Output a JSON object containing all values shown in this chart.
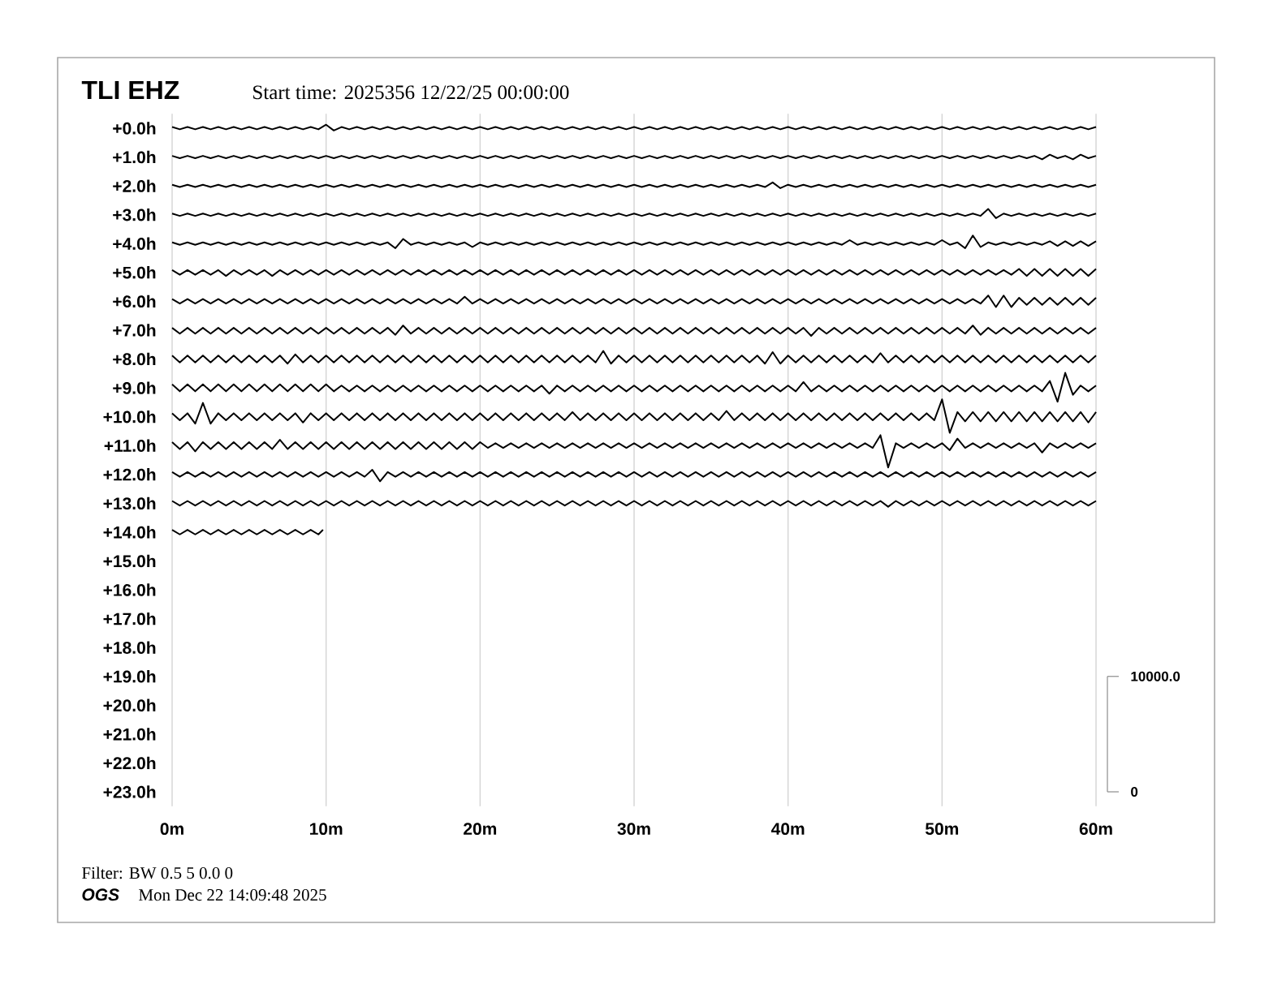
{
  "chart_data": {
    "type": "line",
    "title": "TLI EHZ",
    "subtitle": "Start time: 2025356 12/22/25 00:00:00",
    "annotations": [
      "Filter: BW 0.5 5 0.0 0",
      "OGS",
      "Mon Dec 22 14:09:48 2025"
    ],
    "xlim": [
      0,
      60
    ],
    "xticks": [
      {
        "value": 0,
        "label": "0m"
      },
      {
        "value": 10,
        "label": "10m"
      },
      {
        "value": 20,
        "label": "20m"
      },
      {
        "value": 30,
        "label": "30m"
      },
      {
        "value": 40,
        "label": "40m"
      },
      {
        "value": 50,
        "label": "50m"
      },
      {
        "value": 60,
        "label": "60m"
      }
    ],
    "ylim": [
      23.5,
      -0.5
    ],
    "yticks": [
      {
        "value": 0,
        "label": "+0.0h"
      },
      {
        "value": 1,
        "label": "+1.0h"
      },
      {
        "value": 2,
        "label": "+2.0h"
      },
      {
        "value": 3,
        "label": "+3.0h"
      },
      {
        "value": 4,
        "label": "+4.0h"
      },
      {
        "value": 5,
        "label": "+5.0h"
      },
      {
        "value": 6,
        "label": "+6.0h"
      },
      {
        "value": 7,
        "label": "+7.0h"
      },
      {
        "value": 8,
        "label": "+8.0h"
      },
      {
        "value": 9,
        "label": "+9.0h"
      },
      {
        "value": 10,
        "label": "+10.0h"
      },
      {
        "value": 11,
        "label": "+11.0h"
      },
      {
        "value": 12,
        "label": "+12.0h"
      },
      {
        "value": 13,
        "label": "+13.0h"
      },
      {
        "value": 14,
        "label": "+14.0h"
      },
      {
        "value": 15,
        "label": "+15.0h"
      },
      {
        "value": 16,
        "label": "+16.0h"
      },
      {
        "value": 17,
        "label": "+17.0h"
      },
      {
        "value": 18,
        "label": "+18.0h"
      },
      {
        "value": 19,
        "label": "+19.0h"
      },
      {
        "value": 20,
        "label": "+20.0h"
      },
      {
        "value": 21,
        "label": "+21.0h"
      },
      {
        "value": 22,
        "label": "+22.0h"
      },
      {
        "value": 23,
        "label": "+23.0h"
      }
    ],
    "y2lim": [
      -1250,
      58750
    ],
    "y2ticks": [
      0,
      {
        "value": 10000,
        "label": "10000.0"
      }
    ],
    "grid": "x",
    "marker": "none",
    "line_style": "solid",
    "x": [
      0,
      0.5,
      1,
      1.5,
      2,
      2.5,
      3,
      3.5,
      4,
      4.5,
      5,
      5.5,
      6,
      6.5,
      7,
      7.5,
      8,
      8.5,
      9,
      9.5,
      10,
      10.5,
      11,
      11.5,
      12,
      12.5,
      13,
      13.5,
      14,
      14.5,
      15,
      15.5,
      16,
      16.5,
      17,
      17.5,
      18,
      18.5,
      19,
      19.5,
      20,
      20.5,
      21,
      21.5,
      22,
      22.5,
      23,
      23.5,
      24,
      24.5,
      25,
      25.5,
      26,
      26.5,
      27,
      27.5,
      28,
      28.5,
      29,
      29.5,
      30,
      30.5,
      31,
      31.5,
      32,
      32.5,
      33,
      33.5,
      34,
      34.5,
      35,
      35.5,
      36,
      36.5,
      37,
      37.5,
      38,
      38.5,
      39,
      39.5,
      40,
      40.5,
      41,
      41.5,
      42,
      42.5,
      43,
      43.5,
      44,
      44.5,
      45,
      45.5,
      46,
      46.5,
      47,
      47.5,
      48,
      48.5,
      49,
      49.5,
      50,
      50.5,
      51,
      51.5,
      52,
      52.5,
      53,
      53.5,
      54,
      54.5,
      55,
      55.5,
      56,
      56.5,
      57,
      57.5,
      58,
      58.5,
      59,
      59.5,
      60
    ],
    "series": [
      {
        "axis": "y2",
        "color": "#000000",
        "values": [
          57600,
          57400,
          57600,
          57400,
          57600,
          57400,
          57600,
          57400,
          57600,
          57400,
          57600,
          57400,
          57600,
          57400,
          57600,
          57400,
          57600,
          57400,
          57600,
          57400,
          57800,
          57300,
          57600,
          57400,
          57600,
          57400,
          57600,
          57400,
          57600,
          57400,
          57600,
          57400,
          57600,
          57400,
          57600,
          57400,
          57600,
          57400,
          57600,
          57400,
          57600,
          57400,
          57600,
          57400,
          57600,
          57400,
          57600,
          57400,
          57600,
          57400,
          57600,
          57400,
          57600,
          57400,
          57600,
          57400,
          57600,
          57400,
          57600,
          57400,
          57600,
          57400,
          57600,
          57400,
          57600,
          57400,
          57600,
          57400,
          57600,
          57400,
          57600,
          57400,
          57600,
          57400,
          57600,
          57400,
          57600,
          57400,
          57600,
          57400,
          57600,
          57400,
          57600,
          57400,
          57600,
          57400,
          57600,
          57400,
          57600,
          57400,
          57600,
          57400,
          57600,
          57400,
          57600,
          57400,
          57600,
          57400,
          57600,
          57400,
          57600,
          57400,
          57600,
          57400,
          57600,
          57400,
          57600,
          57400,
          57600,
          57400,
          57600,
          57400,
          57600,
          57400,
          57600,
          57400,
          57600,
          57400,
          57600,
          57400,
          57600
        ]
      },
      {
        "axis": "y2",
        "color": "#000000",
        "values": [
          55100,
          54900,
          55100,
          54900,
          55100,
          54900,
          55100,
          54900,
          55100,
          54900,
          55100,
          54900,
          55100,
          54900,
          55100,
          54900,
          55100,
          54900,
          55100,
          54900,
          55100,
          54900,
          55100,
          54900,
          55100,
          54900,
          55100,
          54900,
          55100,
          54900,
          55100,
          54900,
          55100,
          54900,
          55100,
          54900,
          55100,
          54900,
          55100,
          54900,
          55100,
          54900,
          55100,
          54900,
          55100,
          54900,
          55100,
          54900,
          55100,
          54900,
          55100,
          54900,
          55100,
          54900,
          55100,
          54900,
          55100,
          54900,
          55100,
          54900,
          55100,
          54900,
          55100,
          54900,
          55100,
          54900,
          55100,
          54900,
          55100,
          54900,
          55100,
          54900,
          55100,
          54900,
          55100,
          54900,
          55100,
          54900,
          55100,
          54900,
          55100,
          54900,
          55100,
          54900,
          55100,
          54900,
          55100,
          54900,
          55100,
          54900,
          55100,
          54900,
          55100,
          54900,
          55100,
          54900,
          55100,
          54900,
          55100,
          54900,
          55100,
          54900,
          55100,
          54900,
          55100,
          54900,
          55100,
          54900,
          55100,
          54900,
          55100,
          54900,
          55100,
          54800,
          55200,
          54900,
          55100,
          54800,
          55200,
          54900,
          55100
        ]
      },
      {
        "axis": "y2",
        "color": "#000000",
        "values": [
          52600,
          52400,
          52600,
          52400,
          52600,
          52400,
          52600,
          52400,
          52600,
          52400,
          52600,
          52400,
          52600,
          52400,
          52600,
          52400,
          52600,
          52400,
          52600,
          52400,
          52600,
          52400,
          52600,
          52400,
          52600,
          52400,
          52600,
          52400,
          52600,
          52400,
          52600,
          52400,
          52600,
          52400,
          52600,
          52400,
          52600,
          52400,
          52600,
          52400,
          52600,
          52400,
          52600,
          52400,
          52600,
          52400,
          52600,
          52400,
          52600,
          52400,
          52600,
          52400,
          52600,
          52400,
          52600,
          52400,
          52600,
          52400,
          52600,
          52400,
          52600,
          52400,
          52600,
          52400,
          52600,
          52400,
          52600,
          52400,
          52600,
          52400,
          52600,
          52400,
          52600,
          52400,
          52600,
          52400,
          52600,
          52400,
          52800,
          52300,
          52600,
          52400,
          52600,
          52400,
          52600,
          52400,
          52600,
          52400,
          52600,
          52400,
          52600,
          52400,
          52600,
          52400,
          52600,
          52400,
          52600,
          52400,
          52600,
          52400,
          52600,
          52400,
          52600,
          52400,
          52600,
          52400,
          52600,
          52400,
          52600,
          52400,
          52600,
          52400,
          52600,
          52400,
          52600,
          52400,
          52600,
          52400,
          52600,
          52400,
          52600
        ]
      },
      {
        "axis": "y2",
        "color": "#000000",
        "values": [
          50100,
          49900,
          50100,
          49900,
          50100,
          49900,
          50100,
          49900,
          50100,
          49900,
          50100,
          49900,
          50100,
          49900,
          50100,
          49900,
          50100,
          49900,
          50100,
          49900,
          50100,
          49900,
          50100,
          49900,
          50100,
          49900,
          50100,
          49900,
          50100,
          49900,
          50100,
          49900,
          50100,
          49900,
          50100,
          49900,
          50100,
          49900,
          50100,
          49900,
          50100,
          49900,
          50100,
          49900,
          50100,
          49900,
          50100,
          49900,
          50100,
          49900,
          50100,
          49900,
          50100,
          49900,
          50100,
          49900,
          50100,
          49900,
          50100,
          49900,
          50100,
          49900,
          50100,
          49900,
          50100,
          49900,
          50100,
          49900,
          50100,
          49900,
          50100,
          49900,
          50100,
          49900,
          50100,
          49900,
          50100,
          49900,
          50100,
          49900,
          50100,
          49900,
          50100,
          49900,
          50100,
          49900,
          50100,
          49900,
          50100,
          49900,
          50100,
          49900,
          50100,
          49900,
          50100,
          49900,
          50100,
          49900,
          50100,
          49900,
          50100,
          49900,
          50100,
          49900,
          50100,
          49900,
          50500,
          49700,
          50100,
          49900,
          50100,
          49900,
          50100,
          49900,
          50100,
          49900,
          50100,
          49900,
          50100,
          49900,
          50100
        ]
      },
      {
        "axis": "y2",
        "color": "#000000",
        "values": [
          47600,
          47400,
          47600,
          47400,
          47600,
          47400,
          47600,
          47400,
          47600,
          47400,
          47600,
          47400,
          47600,
          47400,
          47600,
          47400,
          47600,
          47400,
          47600,
          47400,
          47600,
          47400,
          47600,
          47400,
          47600,
          47400,
          47600,
          47400,
          47600,
          47100,
          47900,
          47400,
          47600,
          47400,
          47600,
          47400,
          47600,
          47400,
          47600,
          47200,
          47600,
          47400,
          47600,
          47400,
          47600,
          47400,
          47600,
          47400,
          47600,
          47400,
          47600,
          47400,
          47600,
          47400,
          47600,
          47400,
          47600,
          47400,
          47600,
          47400,
          47600,
          47400,
          47600,
          47400,
          47600,
          47400,
          47600,
          47400,
          47600,
          47400,
          47600,
          47400,
          47600,
          47400,
          47600,
          47400,
          47600,
          47400,
          47600,
          47400,
          47600,
          47400,
          47600,
          47400,
          47600,
          47400,
          47600,
          47400,
          47800,
          47400,
          47600,
          47400,
          47600,
          47400,
          47600,
          47400,
          47600,
          47400,
          47600,
          47400,
          47800,
          47400,
          47600,
          47100,
          48200,
          47200,
          47600,
          47400,
          47600,
          47400,
          47600,
          47400,
          47600,
          47400,
          47700,
          47300,
          47700,
          47300,
          47700,
          47300,
          47700
        ]
      },
      {
        "axis": "y2",
        "color": "#000000",
        "values": [
          45200,
          44800,
          45200,
          44800,
          45200,
          44800,
          45200,
          44700,
          45200,
          44800,
          45200,
          44800,
          45200,
          44700,
          45200,
          44800,
          45200,
          44800,
          45200,
          44800,
          45200,
          44800,
          45200,
          44800,
          45200,
          44800,
          45200,
          44800,
          45200,
          44800,
          45200,
          44800,
          45200,
          44800,
          45200,
          44800,
          45200,
          44800,
          45200,
          44800,
          45200,
          44800,
          45200,
          44800,
          45200,
          44800,
          45200,
          44800,
          45200,
          44800,
          45200,
          44800,
          45200,
          44800,
          45200,
          44800,
          45200,
          44800,
          45200,
          44800,
          45200,
          44800,
          45200,
          44800,
          45200,
          44800,
          45200,
          44800,
          45200,
          44800,
          45200,
          44800,
          45200,
          44800,
          45200,
          44800,
          45200,
          44800,
          45200,
          44800,
          45200,
          44800,
          45200,
          44800,
          45200,
          44800,
          45200,
          44800,
          45200,
          44800,
          45200,
          44800,
          45200,
          44800,
          45200,
          44800,
          45200,
          44800,
          45200,
          44800,
          45200,
          44800,
          45200,
          44800,
          45200,
          44800,
          45200,
          44800,
          45200,
          44800,
          45300,
          44700,
          45300,
          44700,
          45300,
          44700,
          45300,
          44700,
          45300,
          44700,
          45300
        ]
      },
      {
        "axis": "y2",
        "color": "#000000",
        "values": [
          42700,
          42300,
          42700,
          42300,
          42700,
          42300,
          42700,
          42300,
          42700,
          42300,
          42700,
          42300,
          42700,
          42300,
          42700,
          42300,
          42700,
          42300,
          42700,
          42300,
          42700,
          42300,
          42700,
          42300,
          42700,
          42300,
          42700,
          42300,
          42700,
          42300,
          42700,
          42300,
          42700,
          42300,
          42700,
          42300,
          42700,
          42300,
          42900,
          42300,
          42700,
          42300,
          42700,
          42300,
          42700,
          42300,
          42700,
          42300,
          42700,
          42300,
          42700,
          42300,
          42700,
          42300,
          42700,
          42300,
          42700,
          42300,
          42700,
          42300,
          42700,
          42300,
          42700,
          42300,
          42700,
          42300,
          42700,
          42300,
          42700,
          42300,
          42700,
          42300,
          42700,
          42300,
          42700,
          42300,
          42700,
          42300,
          42700,
          42300,
          42700,
          42300,
          42700,
          42300,
          42700,
          42300,
          42700,
          42300,
          42700,
          42300,
          42700,
          42300,
          42700,
          42300,
          42700,
          42300,
          42700,
          42300,
          42700,
          42300,
          42700,
          42300,
          42700,
          42300,
          42700,
          42300,
          43000,
          42000,
          43000,
          42000,
          42800,
          42200,
          42800,
          42200,
          42800,
          42200,
          42800,
          42200,
          42800,
          42200,
          42800
        ]
      },
      {
        "axis": "y2",
        "color": "#000000",
        "values": [
          40200,
          39700,
          40200,
          39700,
          40200,
          39700,
          40200,
          39700,
          40200,
          39700,
          40200,
          39700,
          40200,
          39700,
          40200,
          39700,
          40200,
          39700,
          40200,
          39700,
          40200,
          39700,
          40200,
          39700,
          40200,
          39700,
          40200,
          39700,
          40200,
          39600,
          40400,
          39700,
          40200,
          39700,
          40200,
          39700,
          40200,
          39700,
          40200,
          39700,
          40200,
          39700,
          40200,
          39700,
          40200,
          39700,
          40200,
          39700,
          40200,
          39700,
          40200,
          39700,
          40200,
          39700,
          40200,
          39700,
          40200,
          39700,
          40200,
          39700,
          40200,
          39700,
          40200,
          39700,
          40200,
          39700,
          40200,
          39700,
          40200,
          39700,
          40200,
          39700,
          40200,
          39700,
          40200,
          39700,
          40200,
          39700,
          40200,
          39700,
          40200,
          39700,
          40200,
          39500,
          40200,
          39700,
          40200,
          39700,
          40200,
          39700,
          40200,
          39700,
          40200,
          39700,
          40200,
          39700,
          40200,
          39700,
          40200,
          39700,
          40200,
          39700,
          40200,
          39700,
          40400,
          39600,
          40200,
          39700,
          40200,
          39700,
          40200,
          39700,
          40200,
          39700,
          40200,
          39700,
          40200,
          39700,
          40200,
          39700,
          40200
        ]
      },
      {
        "axis": "y2",
        "color": "#000000",
        "values": [
          37800,
          37200,
          37800,
          37200,
          37800,
          37200,
          37800,
          37200,
          37800,
          37200,
          37800,
          37200,
          37800,
          37200,
          37800,
          37100,
          37900,
          37200,
          37800,
          37200,
          37800,
          37200,
          37800,
          37200,
          37800,
          37200,
          37800,
          37200,
          37800,
          37200,
          37800,
          37200,
          37800,
          37200,
          37800,
          37200,
          37800,
          37200,
          37800,
          37200,
          37800,
          37200,
          37800,
          37200,
          37800,
          37200,
          37800,
          37200,
          37800,
          37200,
          37800,
          37200,
          37800,
          37200,
          37800,
          37200,
          38200,
          37100,
          37800,
          37200,
          37800,
          37200,
          37800,
          37200,
          37800,
          37200,
          37800,
          37200,
          37800,
          37200,
          37800,
          37200,
          37800,
          37200,
          37800,
          37200,
          37800,
          37100,
          38100,
          37100,
          37800,
          37200,
          37800,
          37200,
          37800,
          37200,
          37800,
          37200,
          37800,
          37200,
          37800,
          37200,
          38000,
          37200,
          37800,
          37200,
          37800,
          37200,
          37800,
          37200,
          37800,
          37200,
          37800,
          37200,
          37800,
          37200,
          37800,
          37200,
          37800,
          37200,
          37800,
          37200,
          37800,
          37200,
          37800,
          37200,
          37800,
          37200,
          37800,
          37200,
          37800
        ]
      },
      {
        "axis": "y2",
        "color": "#000000",
        "values": [
          35300,
          34700,
          35300,
          34700,
          35300,
          34700,
          35300,
          34700,
          35300,
          34700,
          35300,
          34700,
          35300,
          34700,
          35300,
          34700,
          35300,
          34700,
          35300,
          34700,
          35300,
          34700,
          35200,
          34700,
          35200,
          34700,
          35200,
          34700,
          35200,
          34700,
          35200,
          34700,
          35200,
          34700,
          35200,
          34700,
          35200,
          34700,
          35200,
          34700,
          35200,
          34700,
          35200,
          34700,
          35200,
          34700,
          35200,
          34700,
          35200,
          34500,
          35200,
          34700,
          35200,
          34700,
          35200,
          34700,
          35200,
          34700,
          35200,
          34700,
          35200,
          34700,
          35200,
          34700,
          35200,
          34700,
          35200,
          34700,
          35200,
          34700,
          35200,
          34700,
          35200,
          34700,
          35200,
          34700,
          35200,
          34700,
          35200,
          34700,
          35200,
          34700,
          35500,
          34700,
          35200,
          34700,
          35200,
          34700,
          35200,
          34700,
          35200,
          34700,
          35200,
          34700,
          35200,
          34700,
          35200,
          34700,
          35200,
          34700,
          35200,
          34700,
          35200,
          34700,
          35200,
          34700,
          35200,
          34700,
          35200,
          34700,
          35200,
          34700,
          35200,
          34700,
          35600,
          33800,
          36300,
          34400,
          35200,
          34700,
          35200
        ]
      },
      {
        "axis": "y2",
        "color": "#000000",
        "values": [
          32800,
          32200,
          32800,
          31900,
          33700,
          31900,
          32800,
          32200,
          32800,
          32200,
          32800,
          32200,
          32800,
          32200,
          32800,
          32200,
          32800,
          32000,
          32800,
          32200,
          32800,
          32200,
          32800,
          32200,
          32800,
          32200,
          32800,
          32200,
          32800,
          32200,
          32800,
          32200,
          32800,
          32200,
          32800,
          32200,
          32800,
          32200,
          32800,
          32200,
          32800,
          32200,
          32800,
          32200,
          32800,
          32200,
          32800,
          32200,
          32800,
          32200,
          32800,
          32200,
          32900,
          32200,
          32800,
          32200,
          32800,
          32200,
          32800,
          32200,
          32800,
          32200,
          32800,
          32200,
          32800,
          32200,
          32800,
          32200,
          32800,
          32200,
          32800,
          32200,
          33000,
          32200,
          32800,
          32200,
          32800,
          32200,
          32800,
          32200,
          32800,
          32200,
          32800,
          32200,
          32800,
          32200,
          32800,
          32200,
          32800,
          32200,
          32800,
          32200,
          32800,
          32200,
          32800,
          32200,
          32800,
          32200,
          32800,
          32200,
          34000,
          31100,
          32900,
          32100,
          32900,
          32100,
          32900,
          32100,
          32900,
          32100,
          32900,
          32100,
          32900,
          32100,
          32900,
          32100,
          32900,
          32100,
          32900,
          32000,
          32900
        ]
      },
      {
        "axis": "y2",
        "color": "#000000",
        "values": [
          30300,
          29700,
          30300,
          29500,
          30300,
          29700,
          30300,
          29700,
          30300,
          29700,
          30300,
          29700,
          30300,
          29700,
          30500,
          29700,
          30300,
          29700,
          30300,
          29700,
          30300,
          29700,
          30300,
          29700,
          30300,
          29700,
          30300,
          29700,
          30300,
          29700,
          30300,
          29700,
          30300,
          29700,
          30300,
          29700,
          30300,
          29700,
          30300,
          29700,
          30300,
          29800,
          30200,
          29800,
          30200,
          29800,
          30200,
          29800,
          30200,
          29800,
          30200,
          29800,
          30200,
          29800,
          30200,
          29800,
          30200,
          29800,
          30200,
          29800,
          30200,
          29800,
          30200,
          29800,
          30200,
          29800,
          30200,
          29800,
          30200,
          29800,
          30200,
          29800,
          30200,
          29800,
          30200,
          29800,
          30200,
          29800,
          30200,
          29800,
          30200,
          29800,
          30200,
          29800,
          30200,
          29800,
          30200,
          29800,
          30200,
          29800,
          30200,
          29800,
          30900,
          28100,
          30200,
          29800,
          30200,
          29800,
          30200,
          29800,
          30200,
          29600,
          30600,
          29800,
          30200,
          29800,
          30200,
          29800,
          30200,
          29800,
          30200,
          29800,
          30200,
          29400,
          30200,
          29800,
          30200,
          29800,
          30200,
          29800,
          30200
        ]
      },
      {
        "axis": "y2",
        "color": "#000000",
        "values": [
          27700,
          27300,
          27700,
          27300,
          27700,
          27300,
          27700,
          27300,
          27700,
          27300,
          27700,
          27300,
          27700,
          27300,
          27700,
          27300,
          27700,
          27300,
          27700,
          27300,
          27700,
          27300,
          27700,
          27300,
          27700,
          27300,
          27900,
          26900,
          27700,
          27300,
          27700,
          27300,
          27700,
          27300,
          27700,
          27300,
          27700,
          27300,
          27700,
          27300,
          27700,
          27300,
          27700,
          27300,
          27700,
          27300,
          27700,
          27300,
          27700,
          27300,
          27700,
          27300,
          27700,
          27300,
          27700,
          27300,
          27700,
          27300,
          27700,
          27300,
          27700,
          27300,
          27700,
          27300,
          27700,
          27300,
          27700,
          27300,
          27700,
          27300,
          27700,
          27300,
          27700,
          27300,
          27700,
          27300,
          27700,
          27300,
          27700,
          27300,
          27700,
          27300,
          27700,
          27300,
          27700,
          27300,
          27700,
          27300,
          27700,
          27300,
          27700,
          27300,
          27700,
          27300,
          27700,
          27300,
          27700,
          27300,
          27700,
          27300,
          27700,
          27300,
          27700,
          27300,
          27700,
          27300,
          27700,
          27300,
          27700,
          27300,
          27700,
          27300,
          27700,
          27300,
          27700,
          27300,
          27700,
          27300,
          27700,
          27300,
          27700
        ]
      },
      {
        "axis": "y2",
        "color": "#000000",
        "values": [
          25200,
          24800,
          25200,
          24800,
          25200,
          24800,
          25200,
          24800,
          25200,
          24800,
          25200,
          24800,
          25200,
          24800,
          25200,
          24800,
          25200,
          24800,
          25200,
          24800,
          25200,
          24800,
          25200,
          24800,
          25200,
          24800,
          25200,
          24800,
          25200,
          24800,
          25200,
          24800,
          25200,
          24800,
          25200,
          24800,
          25200,
          24800,
          25200,
          24800,
          25200,
          24800,
          25200,
          24800,
          25200,
          24800,
          25200,
          24800,
          25200,
          24800,
          25200,
          24800,
          25200,
          24800,
          25200,
          24800,
          25200,
          24800,
          25200,
          24800,
          25200,
          24800,
          25200,
          24800,
          25200,
          24800,
          25200,
          24800,
          25200,
          24800,
          25200,
          24800,
          25200,
          24800,
          25200,
          24800,
          25200,
          24800,
          25200,
          24800,
          25200,
          24800,
          25200,
          24800,
          25200,
          24800,
          25200,
          24800,
          25200,
          24800,
          25200,
          24800,
          25200,
          24700,
          25200,
          24800,
          25200,
          24800,
          25200,
          24800,
          25200,
          24800,
          25200,
          24800,
          25200,
          24800,
          25200,
          24800,
          25200,
          24800,
          25200,
          24800,
          25200,
          24800,
          25200,
          24800,
          25200,
          24800,
          25200,
          24800,
          25200
        ]
      },
      {
        "axis": "y2",
        "color": "#000000",
        "x": [
          0,
          0.5,
          1,
          1.5,
          2,
          2.5,
          3,
          3.5,
          4,
          4.5,
          5,
          5.5,
          6,
          6.5,
          7,
          7.5,
          8,
          8.5,
          9,
          9.5,
          9.8
        ],
        "values": [
          22700,
          22300,
          22700,
          22300,
          22700,
          22300,
          22700,
          22300,
          22700,
          22300,
          22700,
          22300,
          22700,
          22300,
          22700,
          22300,
          22700,
          22300,
          22700,
          22300,
          22700
        ]
      }
    ]
  }
}
